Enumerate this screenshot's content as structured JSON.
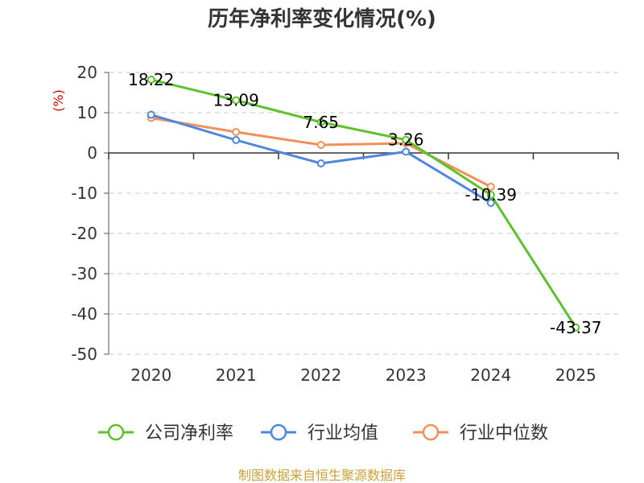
{
  "title": "历年净利率变化情况(%)",
  "source": "制图数据来自恒生聚源数据库",
  "chart_data": {
    "type": "line",
    "title": "历年净利率变化情况(%)",
    "ylabel": "(%)",
    "xlabel": "",
    "categories": [
      "2020",
      "2021",
      "2022",
      "2023",
      "2024",
      "2025"
    ],
    "ylim": [
      -50,
      20
    ],
    "yticks": [
      20,
      10,
      0,
      -10,
      -20,
      -30,
      -40,
      -50
    ],
    "grid": true,
    "legend_position": "bottom",
    "series": [
      {
        "name": "公司净利率",
        "color": "#5cc22c",
        "values": [
          18.22,
          13.09,
          7.65,
          3.26,
          -10.39,
          -43.37
        ],
        "labels": [
          "18.22",
          "13.09",
          "7.65",
          "3.26",
          "-10.39",
          "-43.37"
        ]
      },
      {
        "name": "行业均值",
        "color": "#4f86e0",
        "values": [
          9.5,
          3.2,
          -2.6,
          0.3,
          -12.4,
          null
        ]
      },
      {
        "name": "行业中位数",
        "color": "#f0905a",
        "values": [
          8.7,
          5.2,
          2.0,
          2.4,
          -8.4,
          null
        ]
      }
    ]
  }
}
